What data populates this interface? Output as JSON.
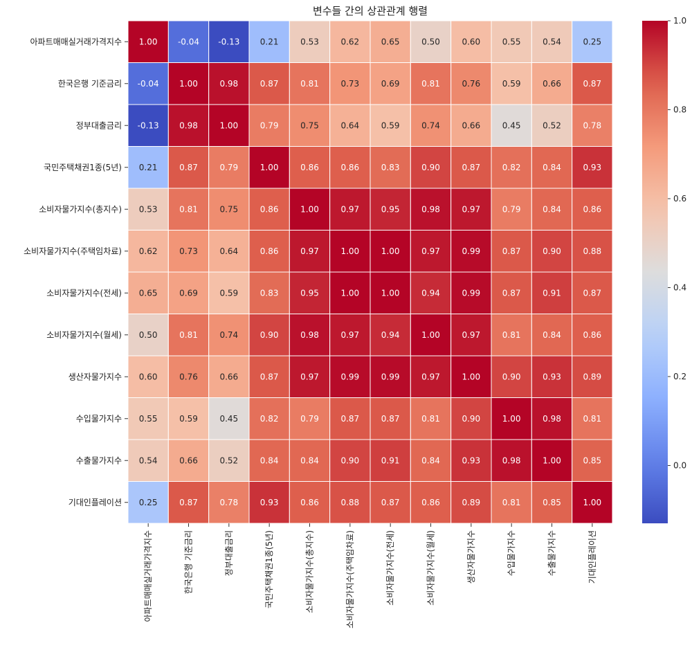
{
  "chart_data": {
    "type": "heatmap",
    "title": "변수들 간의 상관관계 행렬",
    "xlabel": "",
    "ylabel": "",
    "colormap": "coolwarm",
    "vmin": -0.13,
    "vmax": 1.0,
    "value_format": "2 decimals",
    "labels": [
      "아파트매매실거래가격지수",
      "한국은행 기준금리",
      "정부대출금리",
      "국민주택채권1종(5년)",
      "소비자물가지수(총지수)",
      "소비자물가지수(주택임차료)",
      "소비자물가지수(전세)",
      "소비자물가지수(월세)",
      "생산자물가지수",
      "수입물가지수",
      "수출물가지수",
      "기대인플레이션"
    ],
    "matrix": [
      [
        1.0,
        -0.04,
        -0.13,
        0.21,
        0.53,
        0.62,
        0.65,
        0.5,
        0.6,
        0.55,
        0.54,
        0.25
      ],
      [
        -0.04,
        1.0,
        0.98,
        0.87,
        0.81,
        0.73,
        0.69,
        0.81,
        0.76,
        0.59,
        0.66,
        0.87
      ],
      [
        -0.13,
        0.98,
        1.0,
        0.79,
        0.75,
        0.64,
        0.59,
        0.74,
        0.66,
        0.45,
        0.52,
        0.78
      ],
      [
        0.21,
        0.87,
        0.79,
        1.0,
        0.86,
        0.86,
        0.83,
        0.9,
        0.87,
        0.82,
        0.84,
        0.93
      ],
      [
        0.53,
        0.81,
        0.75,
        0.86,
        1.0,
        0.97,
        0.95,
        0.98,
        0.97,
        0.79,
        0.84,
        0.86
      ],
      [
        0.62,
        0.73,
        0.64,
        0.86,
        0.97,
        1.0,
        1.0,
        0.97,
        0.99,
        0.87,
        0.9,
        0.88
      ],
      [
        0.65,
        0.69,
        0.59,
        0.83,
        0.95,
        1.0,
        1.0,
        0.94,
        0.99,
        0.87,
        0.91,
        0.87
      ],
      [
        0.5,
        0.81,
        0.74,
        0.9,
        0.98,
        0.97,
        0.94,
        1.0,
        0.97,
        0.81,
        0.84,
        0.86
      ],
      [
        0.6,
        0.76,
        0.66,
        0.87,
        0.97,
        0.99,
        0.99,
        0.97,
        1.0,
        0.9,
        0.93,
        0.89
      ],
      [
        0.55,
        0.59,
        0.45,
        0.82,
        0.79,
        0.87,
        0.87,
        0.81,
        0.9,
        1.0,
        0.98,
        0.81
      ],
      [
        0.54,
        0.66,
        0.52,
        0.84,
        0.84,
        0.9,
        0.91,
        0.84,
        0.93,
        0.98,
        1.0,
        0.85
      ],
      [
        0.25,
        0.87,
        0.78,
        0.93,
        0.86,
        0.88,
        0.87,
        0.86,
        0.89,
        0.81,
        0.85,
        1.0
      ]
    ],
    "colorbar": {
      "ticks": [
        0.0,
        0.2,
        0.4,
        0.6,
        0.8,
        1.0
      ],
      "tick_labels": [
        "0.0",
        "0.2",
        "0.4",
        "0.6",
        "0.8",
        "1.0"
      ],
      "placement": "right"
    },
    "grid": false
  }
}
